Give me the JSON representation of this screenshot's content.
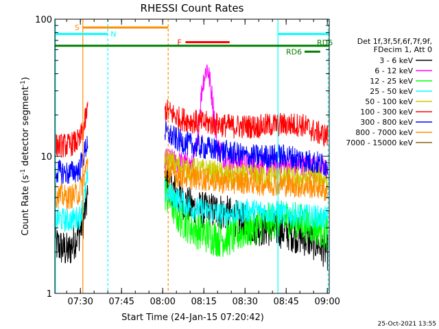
{
  "chart_data": {
    "type": "line",
    "title": "RHESSI Count Rates",
    "xlabel": "Start Time (24-Jan-15 07:20:42)",
    "ylabel_main": "Count Rate (s",
    "ylabel_sup": "-1",
    "ylabel_mid": " detector segment",
    "ylabel_sup2": "-1",
    "ylabel_end": ")",
    "y_scale": "log",
    "ylim": [
      1,
      100
    ],
    "xlim_minutes": [
      0,
      100
    ],
    "x_ticks": [
      {
        "minute": 9.3,
        "label": "07:30"
      },
      {
        "minute": 24.3,
        "label": "07:45"
      },
      {
        "minute": 39.3,
        "label": "08:00"
      },
      {
        "minute": 54.3,
        "label": "08:15"
      },
      {
        "minute": 69.3,
        "label": "08:30"
      },
      {
        "minute": 84.3,
        "label": "08:45"
      },
      {
        "minute": 99.3,
        "label": "09:00"
      }
    ],
    "y_ticks": [
      {
        "value": 1,
        "label": "1"
      },
      {
        "value": 10,
        "label": "10"
      },
      {
        "value": 100,
        "label": "100"
      }
    ],
    "legend_header": [
      "Det 1f,3f,5f,6f,7f,9f,",
      "FDecim 1, Att 0"
    ],
    "series": [
      {
        "name": "3 - 6 keV",
        "color": "#000000",
        "points": [
          [
            0,
            2.3
          ],
          [
            5,
            2.0
          ],
          [
            9,
            2.8
          ],
          [
            10.5,
            3.5
          ],
          [
            12,
            5.0
          ],
          [
            40,
            7.0
          ],
          [
            45,
            5.0
          ],
          [
            50,
            4.2
          ],
          [
            55,
            4.0
          ],
          [
            60,
            4.0
          ],
          [
            65,
            3.6
          ],
          [
            70,
            3.2
          ],
          [
            75,
            3.0
          ],
          [
            80,
            3.0
          ],
          [
            85,
            2.8
          ],
          [
            90,
            2.6
          ],
          [
            96,
            2.3
          ],
          [
            99.5,
            2.0
          ]
        ]
      },
      {
        "name": "6 - 12 keV",
        "color": "#ff00ff",
        "points": [
          [
            40,
            9.5
          ],
          [
            50,
            8.5
          ],
          [
            52,
            12
          ],
          [
            54,
            35
          ],
          [
            55.5,
            45
          ],
          [
            57,
            30
          ],
          [
            59,
            12
          ],
          [
            62,
            9.5
          ],
          [
            70,
            9.0
          ],
          [
            80,
            8.5
          ],
          [
            90,
            8.5
          ],
          [
            99.5,
            8.0
          ]
        ]
      },
      {
        "name": "12 - 25 keV",
        "color": "#00ff00",
        "points": [
          [
            40,
            5.5
          ],
          [
            45,
            3.6
          ],
          [
            50,
            3.0
          ],
          [
            55,
            2.7
          ],
          [
            60,
            2.5
          ],
          [
            65,
            2.6
          ],
          [
            70,
            2.9
          ],
          [
            75,
            3.2
          ],
          [
            80,
            3.4
          ],
          [
            85,
            3.5
          ],
          [
            90,
            3.3
          ],
          [
            96,
            3.0
          ],
          [
            99.5,
            2.8
          ]
        ]
      },
      {
        "name": "25 - 50 keV",
        "color": "#00ffff",
        "points": [
          [
            0,
            3.5
          ],
          [
            5,
            3.4
          ],
          [
            9,
            3.6
          ],
          [
            10.5,
            4.5
          ],
          [
            12,
            7.0
          ],
          [
            40,
            5.5
          ],
          [
            45,
            4.8
          ],
          [
            50,
            4.2
          ],
          [
            55,
            4.0
          ],
          [
            60,
            3.8
          ],
          [
            65,
            3.8
          ],
          [
            70,
            4.0
          ],
          [
            75,
            4.0
          ],
          [
            80,
            3.9
          ],
          [
            85,
            3.8
          ],
          [
            90,
            3.7
          ],
          [
            96,
            3.6
          ],
          [
            99.5,
            3.5
          ]
        ]
      },
      {
        "name": "50 - 100 keV",
        "color": "#cccc00",
        "points": [
          [
            40,
            9.5
          ],
          [
            45,
            8.5
          ],
          [
            50,
            8.0
          ],
          [
            55,
            7.8
          ],
          [
            60,
            7.5
          ],
          [
            65,
            7.2
          ],
          [
            70,
            7.2
          ],
          [
            75,
            7.2
          ],
          [
            80,
            7.2
          ],
          [
            85,
            7.0
          ],
          [
            90,
            7.0
          ],
          [
            96,
            7.0
          ],
          [
            99.5,
            6.8
          ]
        ]
      },
      {
        "name": "100 - 300 keV",
        "color": "#ff0000",
        "points": [
          [
            0,
            12
          ],
          [
            5,
            12
          ],
          [
            9,
            13
          ],
          [
            10.5,
            16
          ],
          [
            12,
            22
          ],
          [
            40,
            22
          ],
          [
            45,
            19
          ],
          [
            50,
            18
          ],
          [
            55,
            17.5
          ],
          [
            60,
            17
          ],
          [
            65,
            16.5
          ],
          [
            70,
            16.5
          ],
          [
            75,
            16.5
          ],
          [
            80,
            17
          ],
          [
            85,
            17
          ],
          [
            90,
            17
          ],
          [
            95,
            15
          ],
          [
            99.5,
            14
          ]
        ]
      },
      {
        "name": "300 - 800 keV",
        "color": "#0000ff",
        "points": [
          [
            0,
            7.8
          ],
          [
            5,
            7.5
          ],
          [
            9,
            8.0
          ],
          [
            10.5,
            10
          ],
          [
            12,
            13
          ],
          [
            40,
            15
          ],
          [
            45,
            13
          ],
          [
            50,
            12
          ],
          [
            55,
            11.5
          ],
          [
            60,
            11
          ],
          [
            65,
            10.5
          ],
          [
            70,
            10
          ],
          [
            75,
            10
          ],
          [
            80,
            10
          ],
          [
            85,
            10
          ],
          [
            90,
            9.5
          ],
          [
            95,
            9.0
          ],
          [
            99.5,
            8.5
          ]
        ]
      },
      {
        "name": "800 - 7000 keV",
        "color": "#ff8c00",
        "points": [
          [
            0,
            5.2
          ],
          [
            5,
            5.0
          ],
          [
            9,
            5.4
          ],
          [
            10.5,
            7
          ],
          [
            12,
            9
          ],
          [
            40,
            8.0
          ],
          [
            45,
            7.2
          ],
          [
            50,
            7.0
          ],
          [
            55,
            6.8
          ],
          [
            60,
            6.5
          ],
          [
            65,
            6.5
          ],
          [
            70,
            6.5
          ],
          [
            75,
            6.3
          ],
          [
            80,
            6.3
          ],
          [
            85,
            6.2
          ],
          [
            90,
            6.0
          ],
          [
            96,
            6.0
          ],
          [
            99.5,
            5.5
          ]
        ]
      },
      {
        "name": "7000 - 15000 keV",
        "color": "#8b6914",
        "points": []
      }
    ],
    "flags": [
      {
        "label": "S",
        "color": "#ff8c00",
        "x0": 10.2,
        "x1": 41.3,
        "y": 87
      },
      {
        "label": "N",
        "color": "#00ffff",
        "x0": 0,
        "x1": 19.3,
        "y": 78
      },
      {
        "label": "F",
        "color": "#ff0000",
        "x0": 47.6,
        "x1": 63.7,
        "y": 68
      },
      {
        "label": "",
        "color": "#00ffff",
        "x0": 81.3,
        "x1": 100,
        "y": 78
      },
      {
        "label": "RD6",
        "color": "#008000",
        "x0": 91,
        "x1": 96.7,
        "y": 58
      },
      {
        "label": "RD6",
        "color": "#008000",
        "x0": 0,
        "x1": 100,
        "y": 64
      }
    ],
    "vlines": [
      {
        "minute": 0.2,
        "color": "#00ffff",
        "dashed": false
      },
      {
        "minute": 10.2,
        "color": "#ff8c00",
        "dashed": false
      },
      {
        "minute": 19.3,
        "color": "#00ffff",
        "dashed": true
      },
      {
        "minute": 41.3,
        "color": "#ff8c00",
        "dashed": true
      },
      {
        "minute": 81.3,
        "color": "#00ffff",
        "dashed": false
      },
      {
        "minute": 99.6,
        "color": "#00ffff",
        "dashed": true
      }
    ],
    "gaps": [
      [
        12,
        40
      ]
    ],
    "footer_date": "25-Oct-2021 13:55"
  }
}
